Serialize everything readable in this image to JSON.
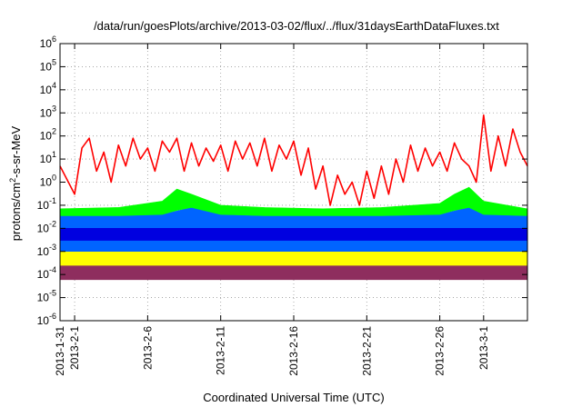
{
  "chart_data": {
    "type": "line",
    "title": "/data/run/goesPlots/archive/2013-03-02/flux/../flux/31daysEarthDataFluxes.txt",
    "xlabel": "Coordinated Universal Time (UTC)",
    "ylabel": {
      "prefix": "protons/cm",
      "sup": "2",
      "suffix": "-s-sr-MeV"
    },
    "y_scale": "log",
    "ylim": [
      1e-06,
      1000000.0
    ],
    "y_ticks": [
      {
        "base": "10",
        "exp": "-6",
        "value": 1e-06
      },
      {
        "base": "10",
        "exp": "-5",
        "value": 1e-05
      },
      {
        "base": "10",
        "exp": "-4",
        "value": 0.0001
      },
      {
        "base": "10",
        "exp": "-3",
        "value": 0.001
      },
      {
        "base": "10",
        "exp": "-2",
        "value": 0.01
      },
      {
        "base": "10",
        "exp": "-1",
        "value": 0.1
      },
      {
        "base": "10",
        "exp": "0",
        "value": 1
      },
      {
        "base": "10",
        "exp": "1",
        "value": 10
      },
      {
        "base": "10",
        "exp": "2",
        "value": 100
      },
      {
        "base": "10",
        "exp": "3",
        "value": 1000
      },
      {
        "base": "10",
        "exp": "4",
        "value": 10000
      },
      {
        "base": "10",
        "exp": "5",
        "value": 100000
      },
      {
        "base": "10",
        "exp": "6",
        "value": 1000000
      }
    ],
    "xlim": [
      "2013-01-31",
      "2013-03-04"
    ],
    "x_ticks": [
      "2013-1-31",
      "2013-2-1",
      "2013-2-6",
      "2013-2-11",
      "2013-2-16",
      "2013-2-21",
      "2013-2-26",
      "2013-3-1"
    ],
    "x_tick_dates": [
      "2013-01-31",
      "2013-02-01",
      "2013-02-06",
      "2013-02-11",
      "2013-02-16",
      "2013-02-21",
      "2013-02-26",
      "2013-03-01"
    ],
    "grid": true,
    "series": [
      {
        "color": "#8e2e5e",
        "style": "band",
        "x": [
          "2013-01-31",
          "2013-02-04",
          "2013-02-08",
          "2013-02-12",
          "2013-02-16",
          "2013-02-20",
          "2013-02-24",
          "2013-02-28",
          "2013-03-04"
        ],
        "low": [
          6e-05,
          6e-05,
          6e-05,
          6e-05,
          6e-05,
          6e-05,
          6e-05,
          6e-05,
          6e-05
        ],
        "high": [
          0.00025,
          0.00025,
          0.00025,
          0.00025,
          0.00025,
          0.00025,
          0.00025,
          0.00025,
          0.00025
        ]
      },
      {
        "color": "#ffff00",
        "style": "band",
        "x": [
          "2013-01-31",
          "2013-02-04",
          "2013-02-08",
          "2013-02-12",
          "2013-02-16",
          "2013-02-20",
          "2013-02-24",
          "2013-02-28",
          "2013-03-04"
        ],
        "low": [
          0.00025,
          0.00025,
          0.00025,
          0.00025,
          0.00025,
          0.00025,
          0.00025,
          0.00025,
          0.00025
        ],
        "high": [
          0.001,
          0.001,
          0.001,
          0.001,
          0.001,
          0.001,
          0.001,
          0.001,
          0.001
        ]
      },
      {
        "color": "#00c8a0",
        "style": "band",
        "x": [
          "2013-01-31",
          "2013-02-04",
          "2013-02-08",
          "2013-02-12",
          "2013-02-16",
          "2013-02-20",
          "2013-02-24",
          "2013-02-28",
          "2013-03-04"
        ],
        "low": [
          0.001,
          0.001,
          0.001,
          0.001,
          0.001,
          0.001,
          0.001,
          0.001,
          0.001
        ],
        "high": [
          0.003,
          0.003,
          0.003,
          0.003,
          0.003,
          0.003,
          0.003,
          0.003,
          0.003
        ]
      },
      {
        "color": "#0064ff",
        "style": "band",
        "x": [
          "2013-01-31",
          "2013-02-04",
          "2013-02-07",
          "2013-02-09",
          "2013-02-11",
          "2013-02-14",
          "2013-02-18",
          "2013-02-22",
          "2013-02-26",
          "2013-02-28",
          "2013-03-04"
        ],
        "low": [
          0.001,
          0.001,
          0.001,
          0.001,
          0.001,
          0.001,
          0.001,
          0.001,
          0.001,
          0.001,
          0.001
        ],
        "high": [
          0.035,
          0.035,
          0.04,
          0.08,
          0.04,
          0.035,
          0.035,
          0.035,
          0.04,
          0.08,
          0.035
        ]
      },
      {
        "color": "#00ff00",
        "style": "band",
        "x": [
          "2013-01-31",
          "2013-02-04",
          "2013-02-07",
          "2013-02-08",
          "2013-02-09",
          "2013-02-11",
          "2013-02-14",
          "2013-02-18",
          "2013-02-22",
          "2013-02-26",
          "2013-02-27",
          "2013-02-28",
          "2013-03-01",
          "2013-03-04"
        ],
        "low": [
          0.035,
          0.035,
          0.04,
          0.06,
          0.08,
          0.04,
          0.035,
          0.035,
          0.035,
          0.04,
          0.06,
          0.08,
          0.04,
          0.035
        ],
        "high": [
          0.07,
          0.08,
          0.15,
          0.5,
          0.3,
          0.1,
          0.08,
          0.07,
          0.08,
          0.12,
          0.3,
          0.6,
          0.15,
          0.07
        ]
      },
      {
        "color": "#0000e0",
        "style": "band",
        "x": [
          "2013-01-31",
          "2013-02-08",
          "2013-02-16",
          "2013-02-24",
          "2013-03-04"
        ],
        "low": [
          0.003,
          0.003,
          0.003,
          0.003,
          0.003
        ],
        "high": [
          0.01,
          0.01,
          0.01,
          0.01,
          0.01
        ]
      },
      {
        "color": "#ff0000",
        "style": "line",
        "x": [
          "2013-01-31",
          "2013-02-01",
          "2013-02-01 12:00",
          "2013-02-02",
          "2013-02-02 12:00",
          "2013-02-03",
          "2013-02-03 12:00",
          "2013-02-04",
          "2013-02-04 12:00",
          "2013-02-05",
          "2013-02-05 12:00",
          "2013-02-06",
          "2013-02-06 12:00",
          "2013-02-07",
          "2013-02-07 12:00",
          "2013-02-08",
          "2013-02-08 12:00",
          "2013-02-09",
          "2013-02-09 12:00",
          "2013-02-10",
          "2013-02-10 12:00",
          "2013-02-11",
          "2013-02-11 12:00",
          "2013-02-12",
          "2013-02-12 12:00",
          "2013-02-13",
          "2013-02-13 12:00",
          "2013-02-14",
          "2013-02-14 12:00",
          "2013-02-15",
          "2013-02-15 12:00",
          "2013-02-16",
          "2013-02-16 12:00",
          "2013-02-17",
          "2013-02-17 12:00",
          "2013-02-18",
          "2013-02-18 12:00",
          "2013-02-19",
          "2013-02-19 12:00",
          "2013-02-20",
          "2013-02-20 12:00",
          "2013-02-21",
          "2013-02-21 12:00",
          "2013-02-22",
          "2013-02-22 12:00",
          "2013-02-23",
          "2013-02-23 12:00",
          "2013-02-24",
          "2013-02-24 12:00",
          "2013-02-25",
          "2013-02-25 12:00",
          "2013-02-26",
          "2013-02-26 12:00",
          "2013-02-27",
          "2013-02-27 12:00",
          "2013-02-28",
          "2013-02-28 12:00",
          "2013-03-01",
          "2013-03-01 12:00",
          "2013-03-02",
          "2013-03-02 12:00",
          "2013-03-03",
          "2013-03-03 12:00",
          "2013-03-04"
        ],
        "y": [
          5,
          0.3,
          30,
          80,
          3,
          20,
          1,
          40,
          5,
          80,
          10,
          30,
          3,
          60,
          20,
          80,
          3,
          50,
          5,
          30,
          8,
          40,
          3,
          60,
          10,
          50,
          5,
          80,
          3,
          40,
          10,
          60,
          2,
          30,
          0.5,
          5,
          0.1,
          2,
          0.3,
          1,
          0.1,
          3,
          0.2,
          5,
          0.3,
          10,
          1,
          40,
          3,
          30,
          5,
          20,
          3,
          50,
          10,
          5,
          1,
          800,
          3,
          100,
          5,
          200,
          20,
          5
        ]
      }
    ]
  }
}
